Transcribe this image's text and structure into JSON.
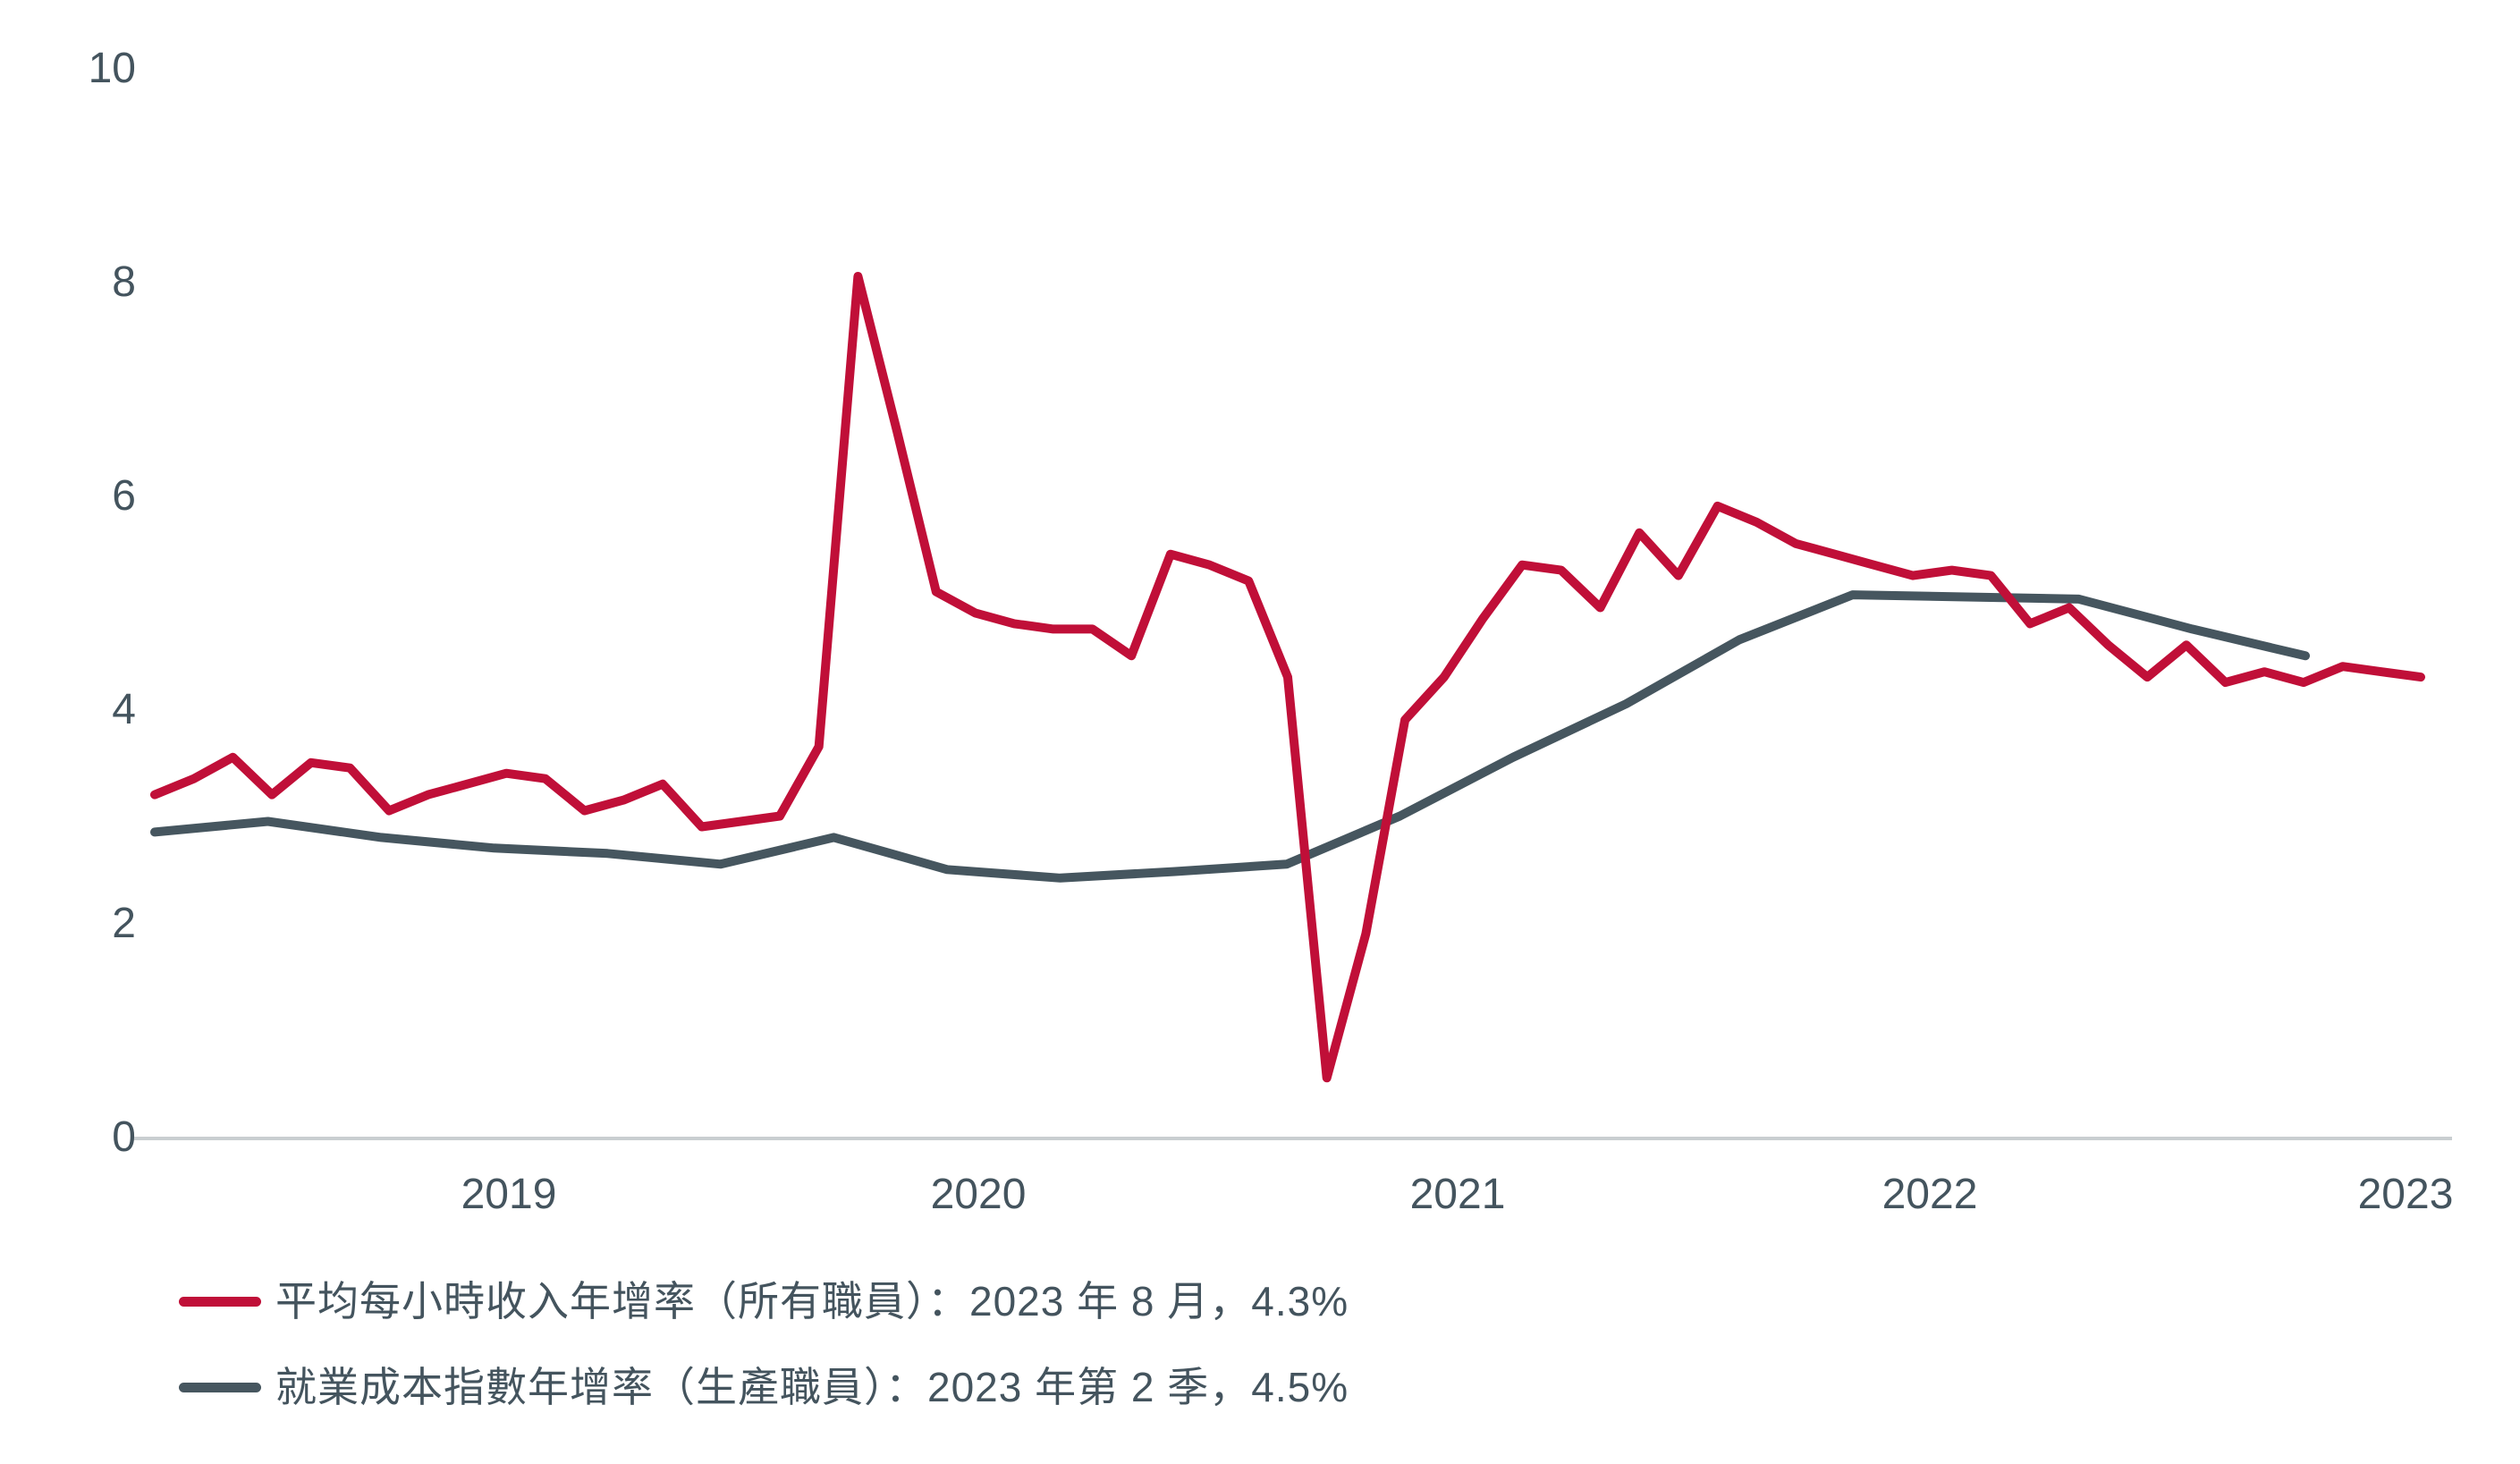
{
  "chart_data": {
    "type": "line",
    "title": "",
    "xlabel": "",
    "ylabel": "",
    "ylim": [
      0,
      10
    ],
    "grid": false,
    "background_color": "#ffffff",
    "axis_line_color": "#C9CED1",
    "tick_text_color": "#44545E",
    "legend_position": "bottom-left",
    "y_ticks": [
      "0",
      "2",
      "4",
      "6",
      "8",
      "10"
    ],
    "x_ticks": [
      "2019",
      "2020",
      "2021",
      "2022",
      "2023"
    ],
    "series": [
      {
        "name": "平均每小時收入年增率（所有職員）：2023 年 8 月，4.3%",
        "color": "#C00F38",
        "frequency": "monthly",
        "x": [
          "2018-10",
          "2018-11",
          "2018-12",
          "2019-01",
          "2019-02",
          "2019-03",
          "2019-04",
          "2019-05",
          "2019-06",
          "2019-07",
          "2019-08",
          "2019-09",
          "2019-10",
          "2019-11",
          "2019-12",
          "2020-01",
          "2020-02",
          "2020-03",
          "2020-04",
          "2020-05",
          "2020-06",
          "2020-07",
          "2020-08",
          "2020-09",
          "2020-10",
          "2020-11",
          "2020-12",
          "2021-01",
          "2021-02",
          "2021-03",
          "2021-04",
          "2021-05",
          "2021-06",
          "2021-07",
          "2021-08",
          "2021-09",
          "2021-10",
          "2021-11",
          "2021-12",
          "2022-01",
          "2022-02",
          "2022-03",
          "2022-04",
          "2022-05",
          "2022-06",
          "2022-07",
          "2022-08",
          "2022-09",
          "2022-10",
          "2022-11",
          "2022-12",
          "2023-01",
          "2023-02",
          "2023-03",
          "2023-04",
          "2023-05",
          "2023-06",
          "2023-07",
          "2023-08"
        ],
        "values": [
          3.2,
          3.35,
          3.55,
          3.2,
          3.5,
          3.45,
          3.05,
          3.2,
          3.3,
          3.4,
          3.35,
          3.05,
          3.15,
          3.3,
          2.9,
          2.95,
          3.0,
          3.65,
          8.05,
          6.6,
          5.1,
          4.9,
          4.8,
          4.75,
          4.75,
          4.5,
          5.45,
          5.35,
          5.2,
          4.3,
          0.55,
          1.9,
          3.9,
          4.3,
          4.85,
          5.35,
          5.3,
          4.95,
          5.65,
          5.25,
          5.9,
          5.75,
          5.55,
          5.45,
          5.35,
          5.25,
          5.3,
          5.25,
          4.8,
          4.95,
          4.6,
          4.3,
          4.6,
          4.25,
          4.35,
          4.25,
          4.4,
          4.35,
          4.3
        ],
        "last_point_label": "2023 年 8 月",
        "last_point_value": "4.3%"
      },
      {
        "name": "就業成本指數年增率（生產職員）：2023 年第 2 季，4.5%",
        "color": "#46565F",
        "frequency": "quarterly",
        "x": [
          "2018-Q3",
          "2018-Q4",
          "2019-Q1",
          "2019-Q2",
          "2019-Q3",
          "2019-Q4",
          "2020-Q1",
          "2020-Q2",
          "2020-Q3",
          "2020-Q4",
          "2021-Q1",
          "2021-Q2",
          "2021-Q3",
          "2021-Q4",
          "2022-Q1",
          "2022-Q2",
          "2022-Q3",
          "2022-Q4",
          "2023-Q1",
          "2023-Q2"
        ],
        "values": [
          2.85,
          2.95,
          2.8,
          2.7,
          2.65,
          2.55,
          2.8,
          2.5,
          2.42,
          2.48,
          2.55,
          3.0,
          3.55,
          4.05,
          4.65,
          5.07,
          5.05,
          5.03,
          4.75,
          4.5
        ],
        "last_point_label": "2023 年第 2 季",
        "last_point_value": "4.5%"
      }
    ]
  }
}
